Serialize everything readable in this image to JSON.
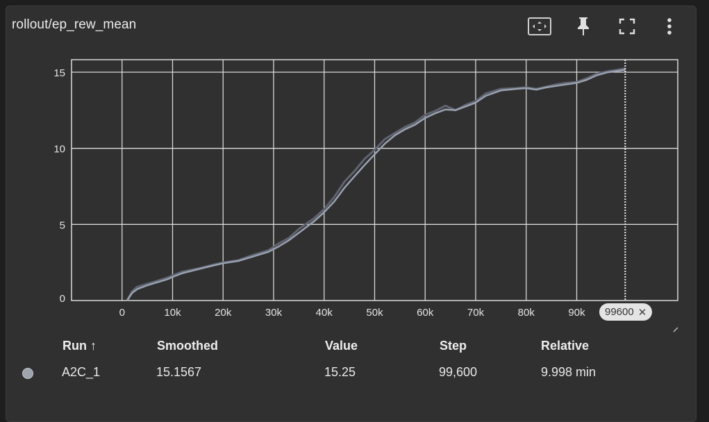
{
  "card": {
    "title": "rollout/ep_rew_mean"
  },
  "toolbar": {
    "icons": [
      "fit-domain-icon",
      "pin-icon",
      "fullscreen-icon",
      "more-vert-icon"
    ]
  },
  "chart_data": {
    "type": "line",
    "xlim": [
      -10000,
      110000
    ],
    "ylim": [
      0,
      15
    ],
    "x_ticks": [
      0,
      10000,
      20000,
      30000,
      40000,
      50000,
      60000,
      70000,
      80000,
      90000
    ],
    "x_tick_labels": [
      "0",
      "10k",
      "20k",
      "30k",
      "40k",
      "50k",
      "60k",
      "70k",
      "80k",
      "90k"
    ],
    "y_ticks": [
      0,
      5,
      10,
      15
    ],
    "y_tick_labels": [
      "0",
      "5",
      "10",
      "15"
    ],
    "grid": true,
    "cursor_step": 99600,
    "cursor_label": "99600",
    "series": [
      {
        "color": "#9aa2b1",
        "values_raw": [
          [
            1000,
            0.0
          ],
          [
            2000,
            0.6
          ],
          [
            3000,
            0.9
          ],
          [
            5000,
            1.1
          ],
          [
            7000,
            1.3
          ],
          [
            9000,
            1.5
          ],
          [
            10000,
            1.65
          ],
          [
            12000,
            1.9
          ],
          [
            15000,
            2.1
          ],
          [
            18000,
            2.35
          ],
          [
            20000,
            2.5
          ],
          [
            23000,
            2.65
          ],
          [
            26000,
            3.0
          ],
          [
            29000,
            3.3
          ],
          [
            31000,
            3.75
          ],
          [
            33000,
            4.1
          ],
          [
            35000,
            4.7
          ],
          [
            38000,
            5.4
          ],
          [
            40000,
            6.0
          ],
          [
            42000,
            6.8
          ],
          [
            44000,
            7.8
          ],
          [
            46000,
            8.5
          ],
          [
            48000,
            9.3
          ],
          [
            50000,
            9.9
          ],
          [
            52000,
            10.6
          ],
          [
            54000,
            11.0
          ],
          [
            56000,
            11.4
          ],
          [
            58000,
            11.7
          ],
          [
            60000,
            12.2
          ],
          [
            62000,
            12.45
          ],
          [
            64000,
            12.8
          ],
          [
            66000,
            12.5
          ],
          [
            68000,
            12.85
          ],
          [
            70000,
            13.1
          ],
          [
            72000,
            13.6
          ],
          [
            75000,
            13.9
          ],
          [
            78000,
            13.95
          ],
          [
            80000,
            14.0
          ],
          [
            82000,
            13.9
          ],
          [
            84000,
            14.05
          ],
          [
            86000,
            14.2
          ],
          [
            88000,
            14.3
          ],
          [
            90000,
            14.35
          ],
          [
            92000,
            14.6
          ],
          [
            94000,
            14.9
          ],
          [
            96000,
            15.05
          ],
          [
            98000,
            15.15
          ],
          [
            99600,
            15.25
          ]
        ],
        "values_smoothed": [
          [
            1000,
            0.0
          ],
          [
            2000,
            0.5
          ],
          [
            3000,
            0.75
          ],
          [
            5000,
            1.0
          ],
          [
            7000,
            1.2
          ],
          [
            9000,
            1.4
          ],
          [
            10000,
            1.55
          ],
          [
            12000,
            1.8
          ],
          [
            15000,
            2.05
          ],
          [
            18000,
            2.3
          ],
          [
            20000,
            2.45
          ],
          [
            23000,
            2.6
          ],
          [
            26000,
            2.9
          ],
          [
            29000,
            3.2
          ],
          [
            31000,
            3.55
          ],
          [
            33000,
            3.95
          ],
          [
            35000,
            4.45
          ],
          [
            38000,
            5.2
          ],
          [
            40000,
            5.8
          ],
          [
            42000,
            6.5
          ],
          [
            44000,
            7.4
          ],
          [
            46000,
            8.15
          ],
          [
            48000,
            8.9
          ],
          [
            50000,
            9.6
          ],
          [
            52000,
            10.3
          ],
          [
            54000,
            10.85
          ],
          [
            56000,
            11.25
          ],
          [
            58000,
            11.55
          ],
          [
            60000,
            12.0
          ],
          [
            62000,
            12.3
          ],
          [
            64000,
            12.55
          ],
          [
            66000,
            12.5
          ],
          [
            68000,
            12.75
          ],
          [
            70000,
            13.0
          ],
          [
            72000,
            13.45
          ],
          [
            75000,
            13.8
          ],
          [
            78000,
            13.9
          ],
          [
            80000,
            13.95
          ],
          [
            82000,
            13.85
          ],
          [
            84000,
            14.0
          ],
          [
            86000,
            14.1
          ],
          [
            88000,
            14.2
          ],
          [
            90000,
            14.3
          ],
          [
            92000,
            14.5
          ],
          [
            94000,
            14.8
          ],
          [
            96000,
            14.98
          ],
          [
            98000,
            15.08
          ],
          [
            99600,
            15.1567
          ]
        ]
      }
    ]
  },
  "table": {
    "headers": {
      "run": "Run ↑",
      "smoothed": "Smoothed",
      "value": "Value",
      "step": "Step",
      "relative": "Relative"
    },
    "rows": [
      {
        "run": "A2C_1",
        "smoothed": "15.1567",
        "value": "15.25",
        "step": "99,600",
        "relative": "9.998 min",
        "color": "#9ea3ad"
      }
    ]
  }
}
